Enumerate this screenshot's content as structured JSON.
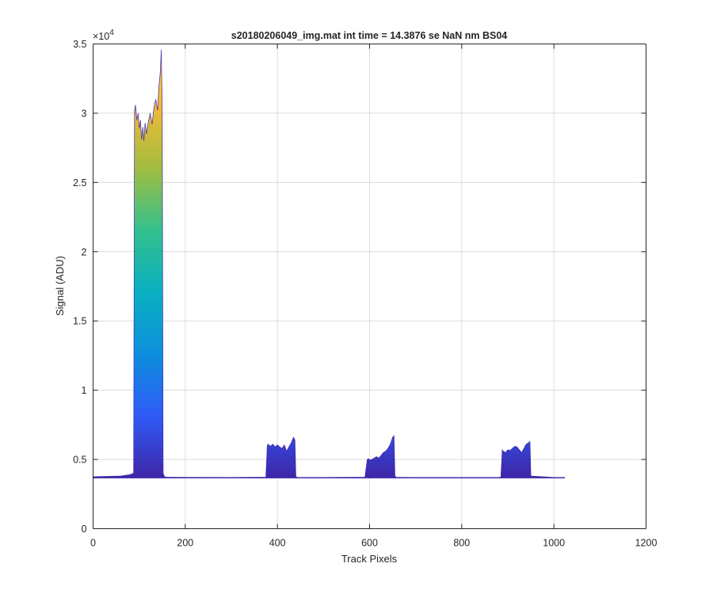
{
  "chart_data": {
    "type": "area",
    "title": "s20180206049_img.mat int time = 14.3876 se  NaN nm BS04",
    "xlabel": "Track Pixels",
    "ylabel": "Signal (ADU)",
    "xlim": [
      0,
      1200
    ],
    "ylim": [
      0,
      35000
    ],
    "x_ticks": [
      0,
      200,
      400,
      600,
      800,
      1000,
      1200
    ],
    "y_ticks": [
      0,
      5000,
      10000,
      15000,
      20000,
      25000,
      30000,
      35000
    ],
    "y_tick_labels": [
      "0",
      "0.5",
      "1",
      "1.5",
      "2",
      "2.5",
      "3",
      "3.5"
    ],
    "y_exponent_label": "×10",
    "y_exponent_power": "4",
    "grid": true,
    "colormap": "parula",
    "colormap_stops": [
      "#3e26a8",
      "#2f5bf7",
      "#0c8fdc",
      "#0ab0c0",
      "#34c08b",
      "#a2bd40",
      "#f2b937",
      "#fade28"
    ],
    "baseline": 3700,
    "series": [
      {
        "x": [
          0,
          60,
          80,
          88,
          90,
          92,
          95,
          98,
          100,
          103,
          105,
          108,
          110,
          113,
          116,
          120,
          124,
          128,
          132,
          136,
          140,
          143,
          146,
          148,
          150,
          152,
          155,
          160,
          200,
          300,
          375,
          378,
          380,
          385,
          390,
          395,
          400,
          405,
          410,
          415,
          420,
          425,
          430,
          435,
          438,
          440,
          442,
          445,
          500,
          590,
          595,
          598,
          600,
          605,
          610,
          615,
          620,
          625,
          630,
          635,
          640,
          645,
          650,
          653,
          655,
          658,
          700,
          880,
          885,
          888,
          890,
          895,
          900,
          905,
          910,
          915,
          920,
          925,
          930,
          935,
          940,
          945,
          948,
          950,
          1000,
          1024
        ],
        "y": [
          3750,
          3800,
          3900,
          4000,
          30200,
          30600,
          29500,
          30000,
          28900,
          29500,
          28100,
          29000,
          28000,
          29300,
          28500,
          29400,
          30000,
          29200,
          30400,
          31000,
          30200,
          32000,
          33000,
          34600,
          30000,
          4000,
          3750,
          3720,
          3710,
          3700,
          3720,
          6000,
          6100,
          5950,
          6100,
          5900,
          6050,
          5900,
          5800,
          6050,
          5600,
          5900,
          6200,
          6600,
          6400,
          3800,
          3710,
          3700,
          3700,
          3720,
          5000,
          5050,
          4950,
          5000,
          5100,
          5200,
          5100,
          5300,
          5500,
          5600,
          5800,
          6100,
          6600,
          6700,
          3800,
          3710,
          3700,
          3700,
          3720,
          5700,
          5600,
          5500,
          5700,
          5650,
          5800,
          5950,
          5900,
          5700,
          5500,
          5800,
          6100,
          6200,
          6300,
          3800,
          3700,
          3700
        ]
      }
    ]
  }
}
